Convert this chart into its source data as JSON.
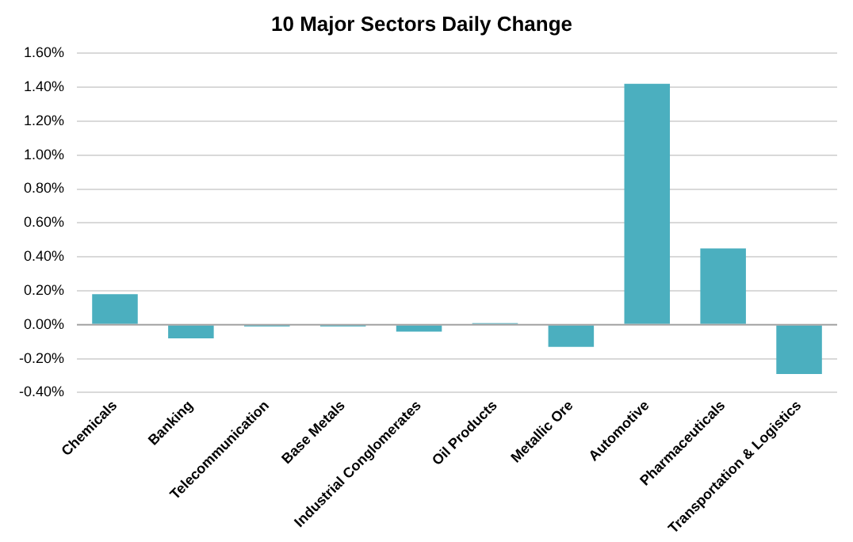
{
  "chart_data": {
    "type": "bar",
    "title": "10 Major Sectors Daily Change",
    "categories": [
      "Chemicals",
      "Banking",
      "Telecommunication",
      "Base Metals",
      "Industrial Conglomerates",
      "Oil Products",
      "Metallic Ore",
      "Automotive",
      "Pharmaceuticals",
      "Transportation & Logistics"
    ],
    "values": [
      0.18,
      -0.08,
      -0.01,
      -0.01,
      -0.04,
      0.01,
      -0.13,
      1.42,
      0.45,
      -0.29
    ],
    "color": "#4bafbf",
    "ylim": [
      -0.4,
      1.6
    ],
    "yticks": [
      {
        "value": -0.4,
        "label": "-0.40%"
      },
      {
        "value": -0.2,
        "label": "-0.20%"
      },
      {
        "value": 0,
        "label": "0.00%"
      },
      {
        "value": 0.2,
        "label": "0.20%"
      },
      {
        "value": 0.4,
        "label": "0.40%"
      },
      {
        "value": 0.6,
        "label": "0.60%"
      },
      {
        "value": 0.8,
        "label": "0.80%"
      },
      {
        "value": 1.0,
        "label": "1.00%"
      },
      {
        "value": 1.2,
        "label": "1.20%"
      },
      {
        "value": 1.4,
        "label": "1.40%"
      },
      {
        "value": 1.6,
        "label": "1.60%"
      }
    ],
    "grid": "y",
    "legend": false
  }
}
